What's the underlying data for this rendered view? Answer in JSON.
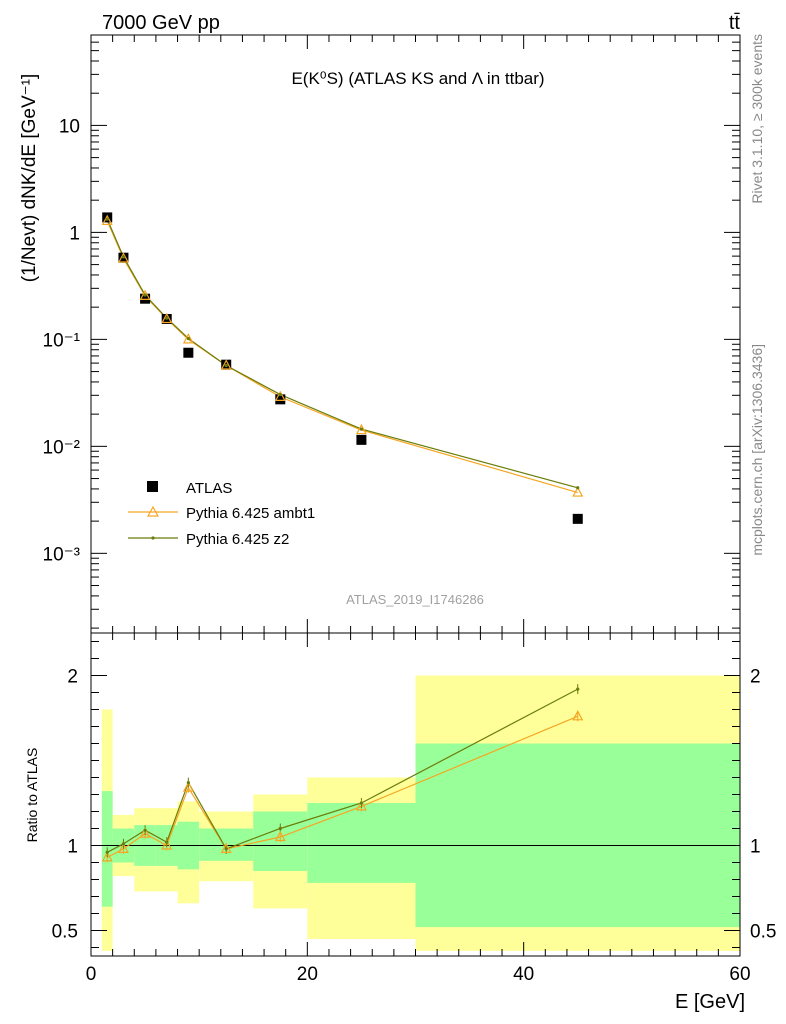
{
  "header": {
    "energy_label": "7000 GeV pp",
    "process_label": "tt̄"
  },
  "side_labels": {
    "rivet": "Rivet 3.1.10, ≥ 300k events",
    "mcplots": "mcplots.cern.ch [arXiv:1306.3436]"
  },
  "chart_data": [
    {
      "type": "scatter",
      "panel": "main",
      "title": "E(K⁰S) (ATLAS KS and Λ in ttbar)",
      "analysis_label": "ATLAS_2019_I1746286",
      "ylabel": "(1/Nevt) dNK/dE [GeV⁻¹]",
      "yscale": "log",
      "ylim": [
        0.00018,
        70
      ],
      "xlim": [
        0,
        60
      ],
      "y_ticks": [
        "10⁻³",
        "10⁻²",
        "10⁻¹",
        "1",
        "10"
      ],
      "legend_position": "bottom-left",
      "series": [
        {
          "name": "ATLAS",
          "style": "markers",
          "color": "#000000",
          "x": [
            1.5,
            3,
            5,
            7,
            9,
            12.5,
            17.5,
            25,
            45
          ],
          "y": [
            1.38,
            0.58,
            0.24,
            0.155,
            0.075,
            0.058,
            0.0275,
            0.0115,
            0.0021
          ]
        },
        {
          "name": "Pythia 6.425 ambt1",
          "style": "line-triangle",
          "color": "#f5a623",
          "x": [
            1.5,
            3,
            5,
            7,
            9,
            12.5,
            17.5,
            25,
            45
          ],
          "y": [
            1.28,
            0.57,
            0.255,
            0.155,
            0.1,
            0.057,
            0.029,
            0.0142,
            0.0037
          ]
        },
        {
          "name": "Pythia 6.425 z2",
          "style": "line-dot",
          "color": "#6b7d0a",
          "x": [
            1.5,
            3,
            5,
            7,
            9,
            12.5,
            17.5,
            25,
            45
          ],
          "y": [
            1.33,
            0.59,
            0.26,
            0.158,
            0.102,
            0.057,
            0.0305,
            0.0145,
            0.0041
          ]
        }
      ]
    },
    {
      "type": "line",
      "panel": "ratio",
      "ylabel": "Ratio to ATLAS",
      "xlabel": "E [GeV]",
      "ylim": [
        0.35,
        2.25
      ],
      "xlim": [
        0,
        60
      ],
      "x_ticks": [
        "0",
        "20",
        "40",
        "60"
      ],
      "y_ticks": [
        "0.5",
        "1",
        "2"
      ],
      "bands": {
        "bins": [
          [
            1,
            2
          ],
          [
            2,
            4
          ],
          [
            4,
            6
          ],
          [
            6,
            8
          ],
          [
            8,
            10
          ],
          [
            10,
            15
          ],
          [
            15,
            20
          ],
          [
            20,
            30
          ],
          [
            30,
            60
          ]
        ],
        "yellow": [
          [
            0.38,
            1.8
          ],
          [
            0.82,
            1.18
          ],
          [
            0.73,
            1.22
          ],
          [
            0.73,
            1.22
          ],
          [
            0.66,
            1.26
          ],
          [
            0.79,
            1.2
          ],
          [
            0.63,
            1.3
          ],
          [
            0.45,
            1.4
          ],
          [
            0.38,
            2.0
          ]
        ],
        "green": [
          [
            0.64,
            1.32
          ],
          [
            0.9,
            1.1
          ],
          [
            0.88,
            1.12
          ],
          [
            0.88,
            1.12
          ],
          [
            0.86,
            1.14
          ],
          [
            0.91,
            1.1
          ],
          [
            0.85,
            1.2
          ],
          [
            0.78,
            1.25
          ],
          [
            0.52,
            1.6
          ]
        ],
        "yellow_color": "#ffff99",
        "green_color": "#99ff99"
      },
      "series": [
        {
          "name": "Pythia 6.425 ambt1",
          "color": "#f5a623",
          "x": [
            1.5,
            3,
            5,
            7,
            9,
            12.5,
            17.5,
            25,
            45
          ],
          "y": [
            0.93,
            0.98,
            1.07,
            1.0,
            1.34,
            0.98,
            1.05,
            1.23,
            1.76
          ]
        },
        {
          "name": "Pythia 6.425 z2",
          "color": "#6b7d0a",
          "x": [
            1.5,
            3,
            5,
            7,
            9,
            12.5,
            17.5,
            25,
            45
          ],
          "y": [
            0.96,
            1.01,
            1.09,
            1.02,
            1.37,
            0.98,
            1.1,
            1.25,
            1.92
          ]
        }
      ]
    }
  ]
}
